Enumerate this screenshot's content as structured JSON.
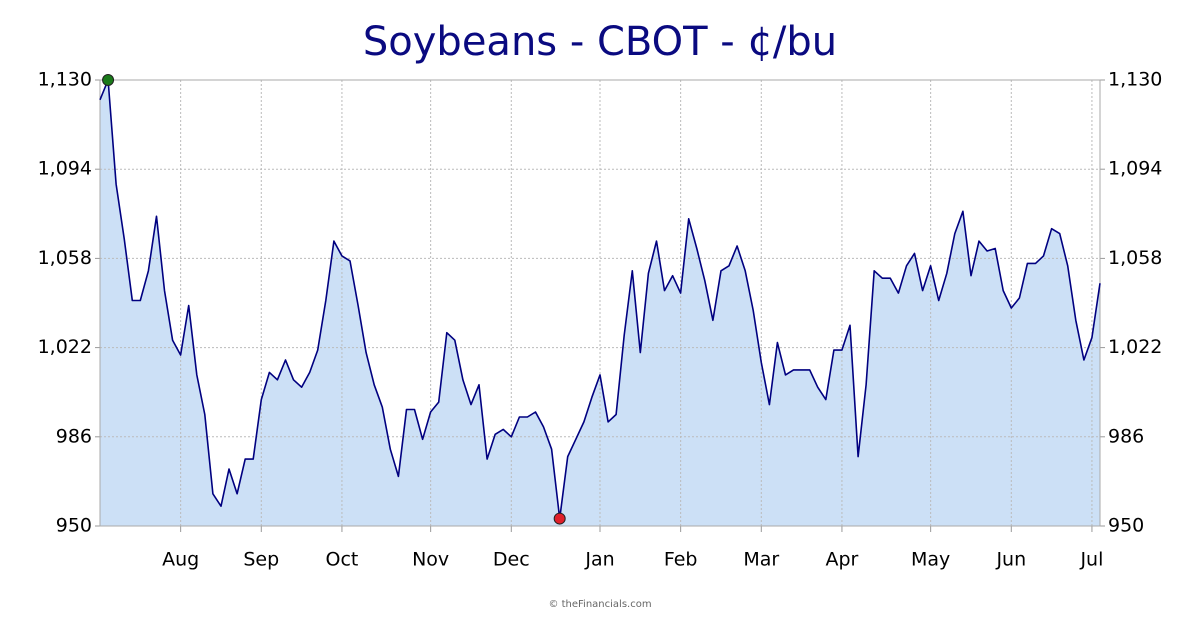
{
  "chart_data": {
    "type": "area",
    "title": "Soybeans - CBOT - ¢/bu",
    "source": "© theFinancials.com",
    "categories": [
      null,
      null,
      null,
      null,
      null,
      null,
      null,
      null,
      null,
      null,
      "Aug",
      null,
      null,
      null,
      null,
      null,
      null,
      null,
      null,
      null,
      "Sep",
      null,
      null,
      null,
      null,
      null,
      null,
      null,
      null,
      null,
      "Oct",
      null,
      null,
      null,
      null,
      null,
      null,
      null,
      null,
      null,
      null,
      "Nov",
      null,
      null,
      null,
      null,
      null,
      null,
      null,
      null,
      null,
      "Dec",
      null,
      null,
      null,
      null,
      null,
      null,
      null,
      null,
      null,
      null,
      "Jan",
      null,
      null,
      null,
      null,
      null,
      null,
      null,
      null,
      null,
      "Feb",
      null,
      null,
      null,
      null,
      null,
      null,
      null,
      null,
      null,
      "Mar",
      null,
      null,
      null,
      null,
      null,
      null,
      null,
      null,
      null,
      "Apr",
      null,
      null,
      null,
      null,
      null,
      null,
      null,
      null,
      null,
      null,
      "May",
      null,
      null,
      null,
      null,
      null,
      null,
      null,
      null,
      null,
      "Jun",
      null,
      null,
      null,
      null,
      null,
      null,
      null,
      null,
      null,
      "Jul",
      null
    ],
    "values": [
      1122,
      1130,
      1088,
      1066,
      1041,
      1041,
      1053,
      1075,
      1045,
      1025,
      1019,
      1039,
      1011,
      995,
      963,
      958,
      973,
      963,
      977,
      977,
      1001,
      1012,
      1009,
      1017,
      1009,
      1006,
      1012,
      1021,
      1041,
      1065,
      1059,
      1057,
      1039,
      1020,
      1007,
      998,
      981,
      970,
      997,
      997,
      985,
      996,
      1000,
      1028,
      1025,
      1009,
      999,
      1007,
      977,
      987,
      989,
      986,
      994,
      994,
      996,
      990,
      981,
      953,
      978,
      985,
      992,
      1002,
      1011,
      992,
      995,
      1027,
      1053,
      1020,
      1052,
      1065,
      1045,
      1051,
      1044,
      1074,
      1062,
      1049,
      1033,
      1053,
      1055,
      1063,
      1053,
      1037,
      1016,
      999,
      1024,
      1011,
      1013,
      1013,
      1013,
      1006,
      1001,
      1021,
      1021,
      1031,
      978,
      1007,
      1053,
      1050,
      1050,
      1044,
      1055,
      1060,
      1045,
      1055,
      1041,
      1052,
      1068,
      1077,
      1051,
      1065,
      1061,
      1062,
      1045,
      1038,
      1042,
      1056,
      1056,
      1059,
      1070,
      1068,
      1055,
      1033,
      1017,
      1026,
      1048
    ],
    "color": "#000080",
    "fill_color": "#cce0f6",
    "max_marker_color": "#1a7a1a",
    "min_marker_color": "#e0202a",
    "ylim": [
      950,
      1130
    ],
    "yticks": [
      950,
      986,
      {
        "value": 1022,
        "label": "1,022"
      },
      {
        "value": 1058,
        "label": "1,058"
      },
      {
        "value": 1094,
        "label": "1,094"
      },
      {
        "value": 1130,
        "label": "1,130"
      }
    ],
    "grid": true
  }
}
